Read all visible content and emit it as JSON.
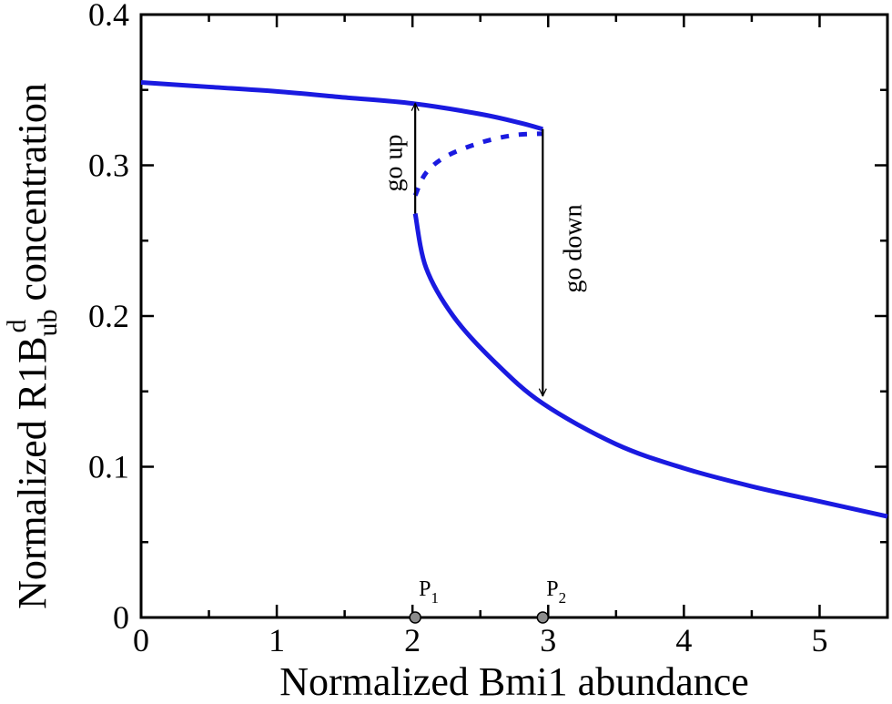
{
  "chart_data": {
    "type": "line",
    "title": "",
    "xlabel": "Normalized Bmi1 abundance",
    "ylabel": {
      "prefix": "Normalized R1B",
      "subscript": "ub",
      "superscript": "d",
      "suffix": "concentration"
    },
    "xlim": [
      0,
      5.5
    ],
    "ylim": [
      0,
      0.4
    ],
    "x_ticks": [
      "0",
      "1",
      "2",
      "3",
      "4",
      "5"
    ],
    "x_tick_values": [
      0,
      1,
      2,
      3,
      4,
      5
    ],
    "y_ticks": [
      "0",
      "0.1",
      "0.2",
      "0.3",
      "0.4"
    ],
    "y_tick_values": [
      0,
      0.1,
      0.2,
      0.3,
      0.4
    ],
    "grid": false,
    "line_color": "#1a1ae0",
    "series": [
      {
        "style": "solid",
        "x": [
          0,
          0.5,
          1.0,
          1.5,
          2.0,
          2.5,
          2.8,
          2.96
        ],
        "y": [
          0.355,
          0.352,
          0.349,
          0.345,
          0.341,
          0.334,
          0.328,
          0.324
        ]
      },
      {
        "style": "dotted",
        "x": [
          2.02,
          2.1,
          2.25,
          2.5,
          2.75,
          2.96
        ],
        "y": [
          0.28,
          0.295,
          0.306,
          0.315,
          0.32,
          0.321
        ]
      },
      {
        "style": "solid",
        "x": [
          2.02,
          2.1,
          2.3,
          2.6,
          2.96,
          3.5,
          4.0,
          4.5,
          5.0,
          5.5
        ],
        "y": [
          0.268,
          0.232,
          0.2,
          0.17,
          0.142,
          0.115,
          0.099,
          0.087,
          0.077,
          0.067
        ]
      }
    ],
    "annotations": [
      {
        "text": "go up",
        "x": 2.02,
        "y_from": 0.268,
        "y_to": 0.341
      },
      {
        "text": "go down",
        "x": 2.96,
        "y_from": 0.324,
        "y_to": 0.147
      }
    ],
    "points": [
      {
        "label": "P",
        "sub": "1",
        "x": 2.02,
        "y": 0
      },
      {
        "label": "P",
        "sub": "2",
        "x": 2.96,
        "y": 0
      }
    ]
  }
}
